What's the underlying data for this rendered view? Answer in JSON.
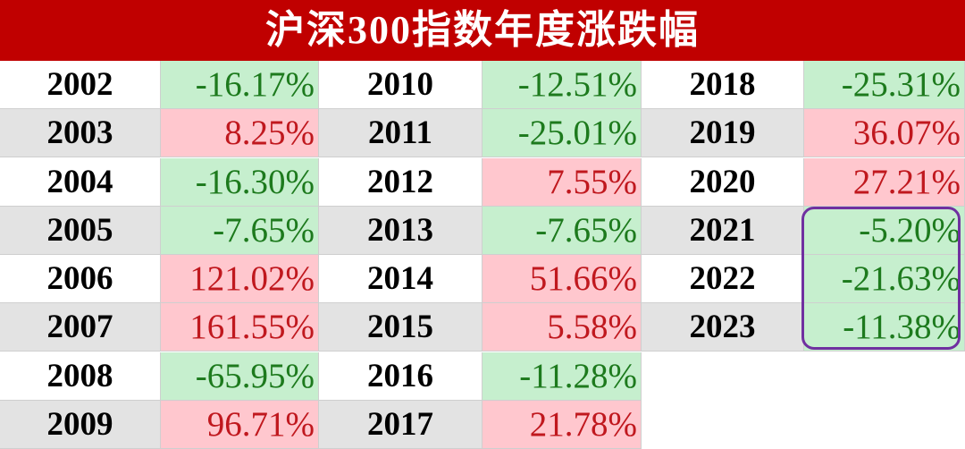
{
  "header": {
    "title": "沪深300指数年度涨跌幅"
  },
  "table": {
    "columns": [
      {
        "rows": [
          {
            "year": "2002",
            "change": "-16.17%"
          },
          {
            "year": "2003",
            "change": "8.25%"
          },
          {
            "year": "2004",
            "change": "-16.30%"
          },
          {
            "year": "2005",
            "change": "-7.65%"
          },
          {
            "year": "2006",
            "change": "121.02%"
          },
          {
            "year": "2007",
            "change": "161.55%"
          },
          {
            "year": "2008",
            "change": "-65.95%"
          },
          {
            "year": "2009",
            "change": "96.71%"
          }
        ]
      },
      {
        "rows": [
          {
            "year": "2010",
            "change": "-12.51%"
          },
          {
            "year": "2011",
            "change": "-25.01%"
          },
          {
            "year": "2012",
            "change": "7.55%"
          },
          {
            "year": "2013",
            "change": "-7.65%"
          },
          {
            "year": "2014",
            "change": "51.66%"
          },
          {
            "year": "2015",
            "change": "5.58%"
          },
          {
            "year": "2016",
            "change": "-11.28%"
          },
          {
            "year": "2017",
            "change": "21.78%"
          }
        ]
      },
      {
        "rows": [
          {
            "year": "2018",
            "change": "-25.31%"
          },
          {
            "year": "2019",
            "change": "36.07%"
          },
          {
            "year": "2020",
            "change": "27.21%"
          },
          {
            "year": "2021",
            "change": "-5.20%"
          },
          {
            "year": "2022",
            "change": "-21.63%"
          },
          {
            "year": "2023",
            "change": "-11.38%"
          }
        ]
      }
    ]
  }
}
